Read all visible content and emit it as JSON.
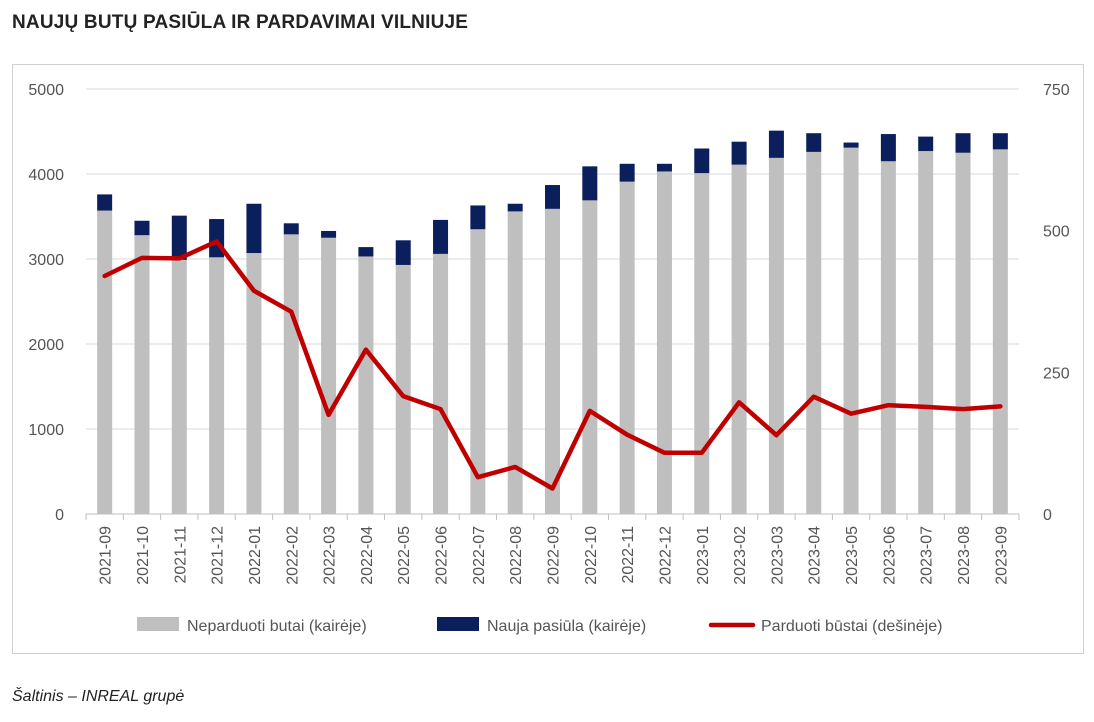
{
  "title": "NAUJŲ BUTŲ PASIŪLA IR PARDAVIMAI VILNIUJE",
  "source": "Šaltinis – INREAL grupė",
  "chart_data": {
    "type": "bar",
    "stacked": true,
    "categories": [
      "2021-09",
      "2021-10",
      "2021-11",
      "2021-12",
      "2022-01",
      "2022-02",
      "2022-03",
      "2022-04",
      "2022-05",
      "2022-06",
      "2022-07",
      "2022-08",
      "2022-09",
      "2022-10",
      "2022-11",
      "2022-12",
      "2023-01",
      "2023-02",
      "2023-03",
      "2023-04",
      "2023-05",
      "2023-06",
      "2023-07",
      "2023-08",
      "2023-09"
    ],
    "series": [
      {
        "name": "Neparduoti butai (kairėje)",
        "type": "bar",
        "axis": "left",
        "color": "#bfbfbf",
        "values": [
          3570,
          3280,
          2990,
          3020,
          3070,
          3290,
          3250,
          3030,
          2930,
          3060,
          3350,
          3560,
          3590,
          3690,
          3910,
          4030,
          4010,
          4110,
          4190,
          4260,
          4310,
          4150,
          4270,
          4250,
          4290
        ]
      },
      {
        "name": "Nauja pasiūla (kairėje)",
        "type": "bar",
        "axis": "left",
        "color": "#0a1f5c",
        "values": [
          190,
          170,
          520,
          450,
          580,
          130,
          80,
          110,
          290,
          400,
          280,
          90,
          280,
          400,
          210,
          90,
          290,
          270,
          320,
          220,
          60,
          320,
          170,
          230,
          190
        ]
      },
      {
        "name": "Parduoti būstai (dešinėje)",
        "type": "line",
        "axis": "right",
        "color": "#c00000",
        "values": [
          420,
          452,
          451,
          481,
          394,
          357,
          175,
          290,
          208,
          185,
          65,
          83,
          45,
          182,
          140,
          108,
          108,
          197,
          139,
          207,
          177,
          192,
          189,
          185,
          190
        ]
      }
    ],
    "left_axis": {
      "min": 0,
      "max": 5000,
      "ticks": [
        0,
        1000,
        2000,
        3000,
        4000,
        5000
      ]
    },
    "right_axis": {
      "min": 0,
      "max": 750,
      "ticks": [
        0,
        250,
        500,
        750
      ]
    },
    "grid": true,
    "legend_position": "bottom"
  }
}
